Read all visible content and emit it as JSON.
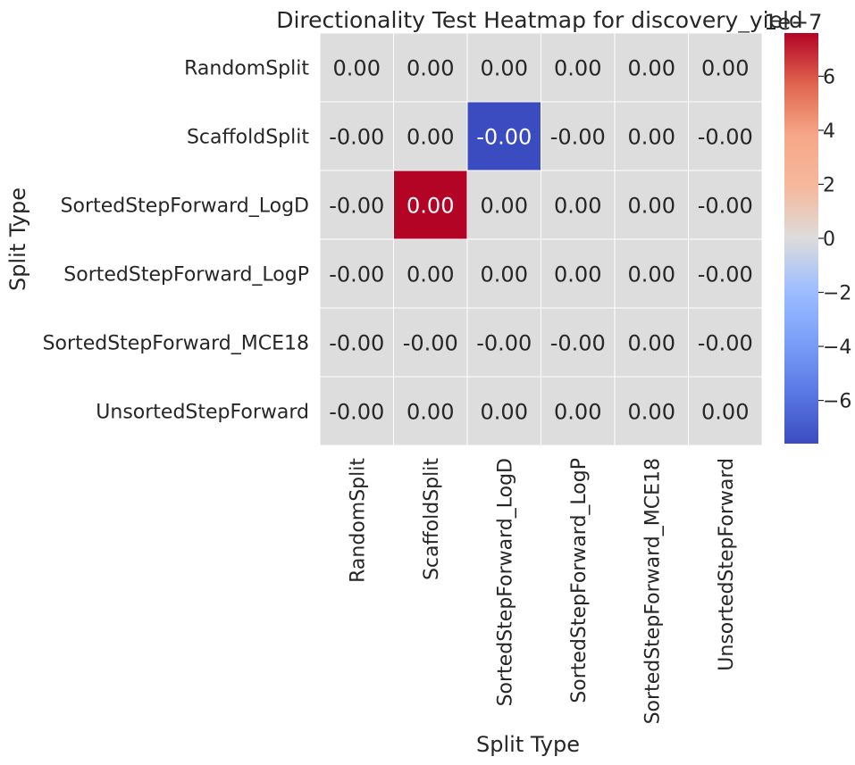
{
  "chart_data": {
    "type": "heatmap",
    "title": "Directionality Test Heatmap for discovery_yield",
    "xlabel": "Split Type",
    "ylabel": "Split Type",
    "rows": [
      "RandomSplit",
      "ScaffoldSplit",
      "SortedStepForward_LogD",
      "SortedStepForward_LogP",
      "SortedStepForward_MCE18",
      "UnsortedStepForward"
    ],
    "columns": [
      "RandomSplit",
      "ScaffoldSplit",
      "SortedStepForward_LogD",
      "SortedStepForward_LogP",
      "SortedStepForward_MCE18",
      "UnsortedStepForward"
    ],
    "annotations": [
      [
        "0.00",
        "0.00",
        "0.00",
        "0.00",
        "0.00",
        "0.00"
      ],
      [
        "-0.00",
        "0.00",
        "-0.00",
        "-0.00",
        "0.00",
        "-0.00"
      ],
      [
        "-0.00",
        "0.00",
        "0.00",
        "0.00",
        "0.00",
        "-0.00"
      ],
      [
        "-0.00",
        "0.00",
        "0.00",
        "0.00",
        "0.00",
        "-0.00"
      ],
      [
        "-0.00",
        "-0.00",
        "-0.00",
        "-0.00",
        "0.00",
        "-0.00"
      ],
      [
        "-0.00",
        "0.00",
        "0.00",
        "0.00",
        "0.00",
        "0.00"
      ]
    ],
    "values": [
      [
        0,
        0,
        0,
        0,
        0,
        0
      ],
      [
        0,
        0,
        -7.6e-07,
        0,
        0,
        0
      ],
      [
        0,
        7.6e-07,
        0,
        0,
        0,
        0
      ],
      [
        0,
        0,
        0,
        0,
        0,
        0
      ],
      [
        0,
        0,
        0,
        0,
        0,
        0
      ],
      [
        0,
        0,
        0,
        0,
        0,
        0
      ]
    ],
    "colorbar": {
      "colormap": "coolwarm",
      "min": -7.6e-07,
      "max": 7.6e-07,
      "ticks": [
        "6",
        "4",
        "2",
        "0",
        "−2",
        "−4",
        "−6"
      ],
      "tick_values": [
        6e-07,
        4e-07,
        2e-07,
        0,
        -2e-07,
        -4e-07,
        -6e-07
      ],
      "offset_label": "1e−7"
    },
    "grid": false,
    "colors": {
      "low": "#3b4cc0",
      "mid": "#dddddd",
      "high": "#b40426",
      "cell_border": "#ffffff"
    }
  }
}
